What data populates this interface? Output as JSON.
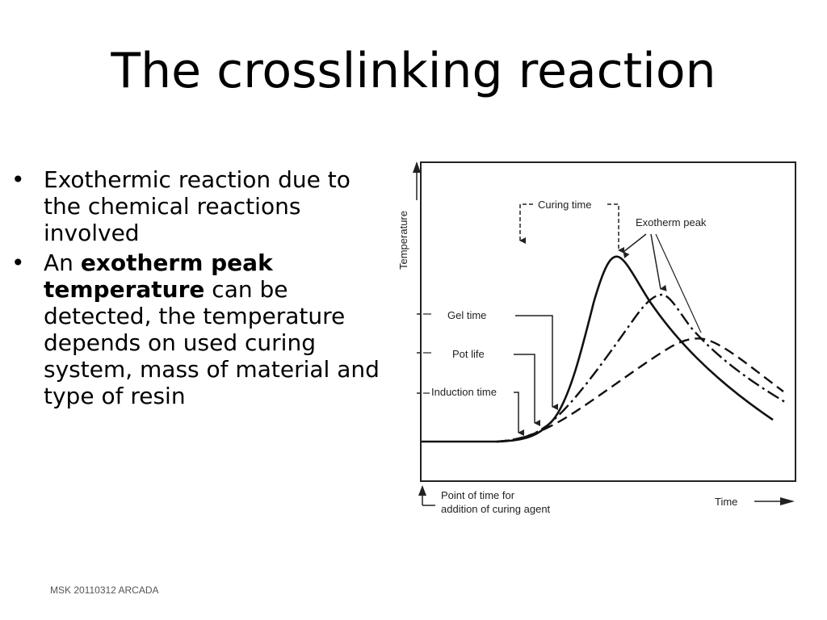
{
  "slide": {
    "title": "The crosslinking reaction",
    "footer": "MSK 20110312 ARCADA",
    "bullets": [
      {
        "marker": "•",
        "text": "Exothermic reaction due to the chemical reactions involved"
      },
      {
        "marker": "•",
        "pre": "An ",
        "bold": "exotherm peak temperature",
        "post": " can be detected, the temperature depends on used curing system, mass of material and type of resin"
      }
    ]
  },
  "diagram": {
    "y_axis_label": "Temperature",
    "x_axis_label": "Time",
    "labels": {
      "curing_time": "Curing time",
      "exotherm_peak": "Exotherm peak",
      "gel_time": "Gel time",
      "pot_life": "Pot life",
      "induction_time": "Induction time",
      "addition_line1": "Point of time for",
      "addition_line2": "addition of curing agent"
    },
    "curves": [
      "solid",
      "dash-dot",
      "dashed"
    ]
  }
}
